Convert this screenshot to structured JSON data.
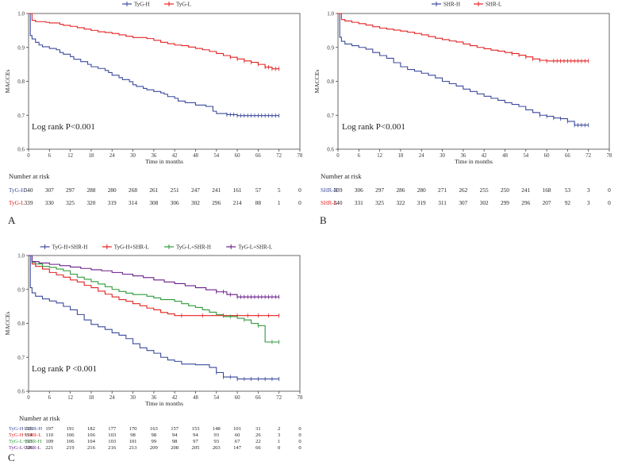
{
  "chart_data": [
    {
      "panel": "A",
      "type": "line",
      "step": true,
      "title": "",
      "xlabel": "Time in months",
      "ylabel": "MACCEs",
      "xlim": [
        0,
        78
      ],
      "ylim": [
        0.6,
        1.0
      ],
      "xticks": [
        0,
        6,
        12,
        18,
        24,
        30,
        36,
        42,
        48,
        54,
        60,
        66,
        72,
        78
      ],
      "yticks": [
        0.6,
        0.7,
        0.8,
        0.9,
        1.0
      ],
      "legend": "top-center",
      "annotation": "Log rank P<0.001",
      "series": [
        {
          "name": "TyG-H",
          "color": "#3b4a9c",
          "x": [
            0,
            0.5,
            1,
            2,
            3,
            4,
            6,
            8,
            9,
            10,
            12,
            13,
            15,
            17,
            18,
            20,
            22,
            23,
            24,
            26,
            27,
            29,
            30,
            31,
            33,
            34,
            36,
            38,
            39,
            40,
            42,
            43,
            45,
            48,
            51,
            53,
            54,
            57,
            60,
            66,
            72
          ],
          "y": [
            1.0,
            0.935,
            0.925,
            0.915,
            0.907,
            0.902,
            0.897,
            0.893,
            0.885,
            0.88,
            0.873,
            0.865,
            0.858,
            0.85,
            0.843,
            0.838,
            0.832,
            0.826,
            0.818,
            0.811,
            0.805,
            0.799,
            0.79,
            0.785,
            0.779,
            0.775,
            0.77,
            0.766,
            0.762,
            0.755,
            0.75,
            0.742,
            0.737,
            0.73,
            0.726,
            0.712,
            0.705,
            0.702,
            0.699,
            0.699,
            0.699
          ],
          "censors": [
            57,
            58,
            59,
            60,
            61,
            62,
            63,
            64,
            65,
            66,
            67,
            68,
            69,
            70,
            71,
            72
          ]
        },
        {
          "name": "TyG-L",
          "color": "#e32222",
          "x": [
            0,
            1,
            2,
            5,
            6,
            9,
            10,
            12,
            14,
            16,
            18,
            20,
            22,
            24,
            26,
            28,
            30,
            34,
            36,
            38,
            40,
            42,
            44,
            46,
            48,
            50,
            52,
            54,
            56,
            58,
            60,
            62,
            64,
            66,
            68,
            70,
            72
          ],
          "y": [
            1.0,
            0.98,
            0.976,
            0.974,
            0.972,
            0.968,
            0.965,
            0.962,
            0.958,
            0.954,
            0.95,
            0.946,
            0.944,
            0.941,
            0.937,
            0.933,
            0.929,
            0.926,
            0.921,
            0.915,
            0.911,
            0.907,
            0.905,
            0.901,
            0.897,
            0.893,
            0.888,
            0.882,
            0.876,
            0.871,
            0.866,
            0.86,
            0.856,
            0.85,
            0.842,
            0.837,
            0.837
          ],
          "censors": [
            58,
            60,
            62,
            64,
            66,
            68,
            69,
            70,
            71,
            72
          ]
        }
      ],
      "risk_table": {
        "title": "Number at risk",
        "columns": [
          0,
          6,
          12,
          18,
          24,
          30,
          36,
          42,
          48,
          54,
          60,
          66,
          72,
          78
        ],
        "rows": [
          {
            "label": "TyG-H",
            "color": "#3b4a9c",
            "values": [
              "340",
              "307",
              "297",
              "288",
              "280",
              "268",
              "261",
              "251",
              "247",
              "241",
              "161",
              "57",
              "5",
              "0"
            ]
          },
          {
            "label": "TyG-L",
            "color": "#e32222",
            "values": [
              "339",
              "330",
              "325",
              "320",
              "319",
              "314",
              "308",
              "306",
              "302",
              "296",
              "214",
              "88",
              "1",
              "0"
            ]
          }
        ]
      }
    },
    {
      "panel": "B",
      "type": "line",
      "step": true,
      "title": "",
      "xlabel": "Time in months",
      "ylabel": "MACCEs",
      "xlim": [
        0,
        78
      ],
      "ylim": [
        0.6,
        1.0
      ],
      "xticks": [
        0,
        6,
        12,
        18,
        24,
        30,
        36,
        42,
        48,
        54,
        60,
        66,
        72,
        78
      ],
      "yticks": [
        0.6,
        0.7,
        0.8,
        0.9,
        1.0
      ],
      "legend": "top-center",
      "annotation": "Log rank P<0.001",
      "series": [
        {
          "name": "SHR-H",
          "color": "#3b4a9c",
          "x": [
            0,
            0.5,
            1,
            2,
            4,
            6,
            8,
            10,
            12,
            14,
            16,
            18,
            20,
            22,
            24,
            26,
            28,
            30,
            32,
            34,
            36,
            38,
            40,
            42,
            44,
            46,
            48,
            50,
            52,
            54,
            56,
            58,
            60,
            62,
            64,
            66,
            68,
            70,
            72
          ],
          "y": [
            1.0,
            0.93,
            0.918,
            0.91,
            0.905,
            0.9,
            0.895,
            0.885,
            0.876,
            0.868,
            0.855,
            0.843,
            0.835,
            0.83,
            0.824,
            0.818,
            0.81,
            0.8,
            0.793,
            0.786,
            0.777,
            0.77,
            0.763,
            0.756,
            0.75,
            0.744,
            0.737,
            0.732,
            0.726,
            0.716,
            0.708,
            0.7,
            0.697,
            0.692,
            0.69,
            0.682,
            0.671,
            0.671,
            0.671
          ],
          "censors": [
            58,
            60,
            62,
            64,
            66,
            68,
            69,
            70,
            71,
            72
          ]
        },
        {
          "name": "SHR-L",
          "color": "#e32222",
          "x": [
            0,
            1,
            2,
            4,
            6,
            8,
            10,
            12,
            14,
            16,
            18,
            20,
            22,
            24,
            26,
            28,
            30,
            32,
            34,
            36,
            38,
            40,
            42,
            44,
            46,
            48,
            50,
            52,
            54,
            56,
            58,
            60,
            66,
            72
          ],
          "y": [
            1.0,
            0.982,
            0.978,
            0.974,
            0.97,
            0.966,
            0.961,
            0.957,
            0.954,
            0.951,
            0.948,
            0.945,
            0.941,
            0.937,
            0.932,
            0.927,
            0.923,
            0.919,
            0.916,
            0.91,
            0.905,
            0.9,
            0.896,
            0.892,
            0.889,
            0.885,
            0.882,
            0.877,
            0.872,
            0.866,
            0.862,
            0.86,
            0.86,
            0.86
          ],
          "censors": [
            50,
            52,
            54,
            56,
            58,
            60,
            62,
            63,
            64,
            65,
            66,
            67,
            68,
            69,
            70,
            71,
            72
          ]
        }
      ],
      "risk_table": {
        "title": "Number at risk",
        "columns": [
          0,
          6,
          12,
          18,
          24,
          30,
          36,
          42,
          48,
          54,
          60,
          66,
          72,
          78
        ],
        "rows": [
          {
            "label": "SHR-H",
            "color": "#3b4a9c",
            "values": [
              "339",
              "306",
              "297",
              "286",
              "280",
              "271",
              "262",
              "255",
              "250",
              "241",
              "168",
              "53",
              "3",
              "0"
            ]
          },
          {
            "label": "SHR-L",
            "color": "#e32222",
            "values": [
              "340",
              "331",
              "325",
              "322",
              "319",
              "311",
              "307",
              "302",
              "299",
              "296",
              "207",
              "92",
              "3",
              "0"
            ]
          }
        ]
      }
    },
    {
      "panel": "C",
      "type": "line",
      "step": true,
      "title": "",
      "xlabel": "Time in months",
      "ylabel": "MACCEs",
      "xlim": [
        0,
        78
      ],
      "ylim": [
        0.6,
        1.0
      ],
      "xticks": [
        0,
        6,
        12,
        18,
        24,
        30,
        36,
        42,
        48,
        54,
        60,
        66,
        72,
        78
      ],
      "yticks": [
        0.6,
        0.7,
        0.8,
        0.9,
        1.0
      ],
      "legend": "top-center",
      "annotation": "Log rank P <0.001",
      "series": [
        {
          "name": "TyG-H+SHR-H",
          "color": "#3b4a9c",
          "x": [
            0,
            0.5,
            1,
            2,
            4,
            6,
            8,
            10,
            12,
            14,
            16,
            18,
            20,
            22,
            24,
            26,
            28,
            30,
            32,
            34,
            36,
            38,
            40,
            42,
            44,
            48,
            52,
            54,
            56,
            60,
            66,
            72
          ],
          "y": [
            1.0,
            0.905,
            0.89,
            0.88,
            0.872,
            0.866,
            0.86,
            0.85,
            0.84,
            0.826,
            0.81,
            0.797,
            0.79,
            0.782,
            0.772,
            0.765,
            0.755,
            0.74,
            0.728,
            0.72,
            0.712,
            0.7,
            0.692,
            0.688,
            0.68,
            0.678,
            0.67,
            0.655,
            0.642,
            0.636,
            0.636,
            0.636
          ],
          "censors": [
            54,
            56,
            58,
            60,
            62,
            64,
            66,
            68,
            70,
            72
          ]
        },
        {
          "name": "TyG-H+SHR-L",
          "color": "#e32222",
          "x": [
            0,
            1,
            2,
            4,
            6,
            8,
            10,
            12,
            14,
            16,
            18,
            20,
            22,
            24,
            26,
            28,
            30,
            32,
            34,
            36,
            38,
            40,
            42,
            48,
            54,
            60,
            66,
            72
          ],
          "y": [
            1.0,
            0.975,
            0.968,
            0.96,
            0.95,
            0.943,
            0.936,
            0.928,
            0.922,
            0.912,
            0.905,
            0.895,
            0.886,
            0.878,
            0.87,
            0.865,
            0.858,
            0.852,
            0.845,
            0.84,
            0.832,
            0.828,
            0.823,
            0.823,
            0.823,
            0.823,
            0.823,
            0.823
          ],
          "censors": [
            44,
            50,
            56,
            60,
            63,
            66,
            69,
            72
          ]
        },
        {
          "name": "TyG-L+SHR-H",
          "color": "#2f9a3a",
          "x": [
            0,
            1,
            2,
            4,
            6,
            8,
            10,
            12,
            14,
            16,
            18,
            20,
            22,
            24,
            26,
            28,
            30,
            34,
            36,
            38,
            42,
            44,
            46,
            48,
            50,
            52,
            54,
            56,
            58,
            60,
            62,
            64,
            66,
            68,
            70,
            72
          ],
          "y": [
            1.0,
            0.98,
            0.975,
            0.968,
            0.965,
            0.96,
            0.955,
            0.945,
            0.936,
            0.93,
            0.923,
            0.916,
            0.908,
            0.9,
            0.894,
            0.889,
            0.885,
            0.88,
            0.875,
            0.87,
            0.865,
            0.858,
            0.852,
            0.847,
            0.84,
            0.833,
            0.826,
            0.82,
            0.82,
            0.815,
            0.81,
            0.8,
            0.793,
            0.745,
            0.745,
            0.745
          ],
          "censors": [
            58,
            62,
            66,
            70,
            72
          ]
        },
        {
          "name": "TyG-L+SHR-L",
          "color": "#6a1f8a",
          "x": [
            0,
            1,
            3,
            6,
            9,
            12,
            15,
            18,
            21,
            24,
            27,
            30,
            33,
            36,
            39,
            42,
            45,
            48,
            51,
            54,
            57,
            60,
            66,
            72
          ],
          "y": [
            1.0,
            0.982,
            0.978,
            0.974,
            0.97,
            0.966,
            0.962,
            0.958,
            0.955,
            0.95,
            0.945,
            0.94,
            0.935,
            0.928,
            0.922,
            0.917,
            0.911,
            0.905,
            0.899,
            0.893,
            0.885,
            0.878,
            0.878,
            0.878
          ],
          "censors": [
            54,
            56,
            58,
            60,
            61,
            62,
            63,
            64,
            65,
            66,
            67,
            68,
            69,
            70,
            71,
            72
          ]
        }
      ],
      "risk_table": {
        "title": "Number at risk",
        "columns": [
          0,
          6,
          12,
          18,
          24,
          30,
          36,
          42,
          48,
          54,
          60,
          66,
          72,
          78
        ],
        "rows": [
          {
            "label": "TyG-H+SHR-H",
            "color": "#3b4a9c",
            "values": [
              "226",
              "197",
              "191",
              "182",
              "177",
              "170",
              "163",
              "157",
              "153",
              "148",
              "101",
              "31",
              "2",
              "0"
            ]
          },
          {
            "label": "TyG-H+SHR-L",
            "color": "#e32222",
            "values": [
              "114",
              "110",
              "106",
              "106",
              "103",
              "98",
              "98",
              "94",
              "94",
              "93",
              "60",
              "26",
              "3",
              "0"
            ]
          },
          {
            "label": "TyG-L+SHR-H",
            "color": "#2f9a3a",
            "values": [
              "113",
              "109",
              "106",
              "104",
              "103",
              "101",
              "99",
              "98",
              "97",
              "93",
              "67",
              "22",
              "1",
              "0"
            ]
          },
          {
            "label": "TyG-L+SHR-L",
            "color": "#6a1f8a",
            "values": [
              "226",
              "221",
              "219",
              "216",
              "216",
              "213",
              "209",
              "208",
              "205",
              "203",
              "147",
              "66",
              "0",
              "0"
            ]
          }
        ]
      }
    }
  ]
}
